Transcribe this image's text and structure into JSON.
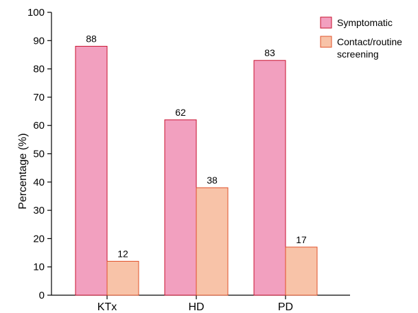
{
  "chart_data": {
    "type": "bar",
    "title": "",
    "xlabel": "",
    "ylabel": "Percentage (%)",
    "ylim": [
      0,
      100
    ],
    "yticks": [
      0,
      10,
      20,
      30,
      40,
      50,
      60,
      70,
      80,
      90,
      100
    ],
    "categories": [
      "KTx",
      "HD",
      "PD"
    ],
    "series": [
      {
        "name": "Symptomatic",
        "values": [
          88,
          62,
          83
        ],
        "color": "#f2a0bf",
        "stroke": "#c8102e"
      },
      {
        "name": "Contact/routine screening",
        "name_lines": [
          "Contact/routine",
          "screening"
        ],
        "values": [
          12,
          38,
          17
        ],
        "color": "#f8c3a8",
        "stroke": "#e0502a"
      }
    ],
    "data_labels": true,
    "grid": false,
    "legend_position": "top-right"
  }
}
